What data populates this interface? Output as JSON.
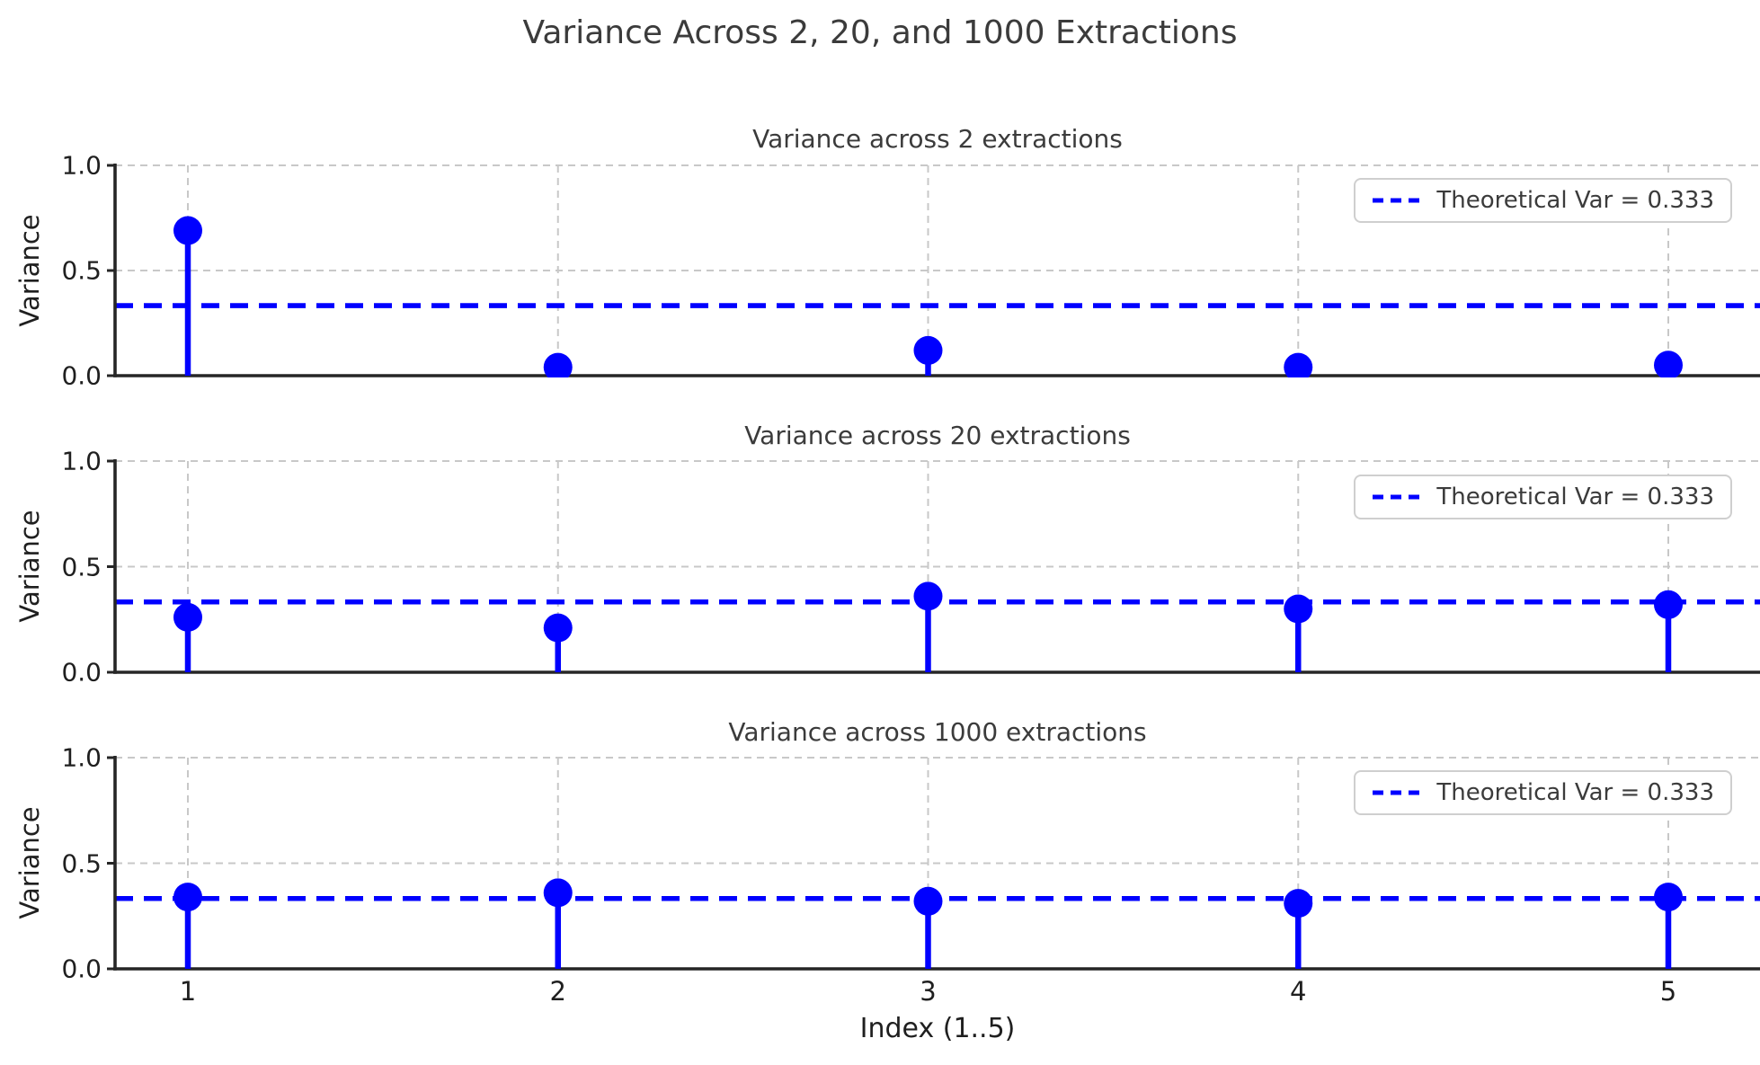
{
  "suptitle": "Variance Across 2, 20, and 1000 Extractions",
  "xlabel": "Index (1..5)",
  "xticks": [
    {
      "label": "1",
      "value": 1
    },
    {
      "label": "2",
      "value": 2
    },
    {
      "label": "3",
      "value": 3
    },
    {
      "label": "4",
      "value": 4
    },
    {
      "label": "5",
      "value": 5
    }
  ],
  "colors": {
    "stem_blue": "#0000ff",
    "reference_line_blue": "#0000ff",
    "grid_gray": "#c8c8c8",
    "spine_dark": "#262626",
    "title_text": "#3b3b3b",
    "tick_text": "#1f1f1f",
    "legend_border": "#cfcfcf",
    "background": "#ffffff"
  },
  "chart_data": [
    {
      "type": "stem",
      "title": "Variance across 2 extractions",
      "ylabel": "Variance",
      "x": [
        1,
        2,
        3,
        4,
        5
      ],
      "values": [
        0.69,
        0.04,
        0.12,
        0.04,
        0.05
      ],
      "ylim": [
        0.0,
        1.0
      ],
      "yticks": [
        {
          "label": "0.0",
          "value": 0.0
        },
        {
          "label": "0.5",
          "value": 0.5
        },
        {
          "label": "1.0",
          "value": 1.0
        }
      ],
      "reference_line": {
        "value": 0.333,
        "label": "Theoretical Var = 0.333",
        "style": "dashed"
      },
      "legend_position": "upper right",
      "grid": true
    },
    {
      "type": "stem",
      "title": "Variance across 20 extractions",
      "ylabel": "Variance",
      "x": [
        1,
        2,
        3,
        4,
        5
      ],
      "values": [
        0.26,
        0.21,
        0.36,
        0.3,
        0.32
      ],
      "ylim": [
        0.0,
        1.0
      ],
      "yticks": [
        {
          "label": "0.0",
          "value": 0.0
        },
        {
          "label": "0.5",
          "value": 0.5
        },
        {
          "label": "1.0",
          "value": 1.0
        }
      ],
      "reference_line": {
        "value": 0.333,
        "label": "Theoretical Var = 0.333",
        "style": "dashed"
      },
      "legend_position": "upper right",
      "grid": true
    },
    {
      "type": "stem",
      "title": "Variance across 1000 extractions",
      "ylabel": "Variance",
      "x": [
        1,
        2,
        3,
        4,
        5
      ],
      "values": [
        0.34,
        0.36,
        0.32,
        0.31,
        0.34
      ],
      "ylim": [
        0.0,
        1.0
      ],
      "yticks": [
        {
          "label": "0.0",
          "value": 0.0
        },
        {
          "label": "0.5",
          "value": 0.5
        },
        {
          "label": "1.0",
          "value": 1.0
        }
      ],
      "reference_line": {
        "value": 0.333,
        "label": "Theoretical Var = 0.333",
        "style": "dashed"
      },
      "legend_position": "upper right",
      "grid": true
    }
  ]
}
